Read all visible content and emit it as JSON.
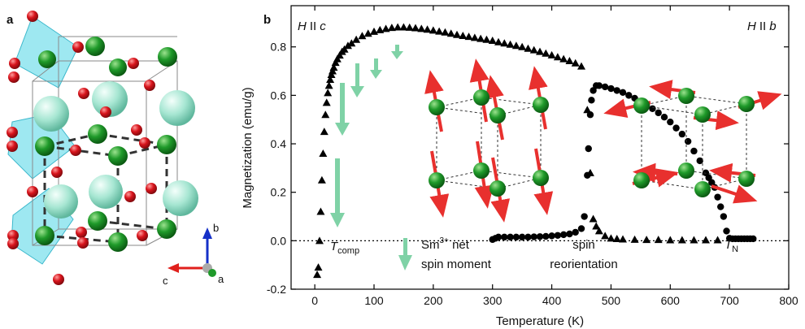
{
  "panels": {
    "a": {
      "label": "a",
      "axis_labels": {
        "b": "b",
        "c": "c",
        "a": "a"
      }
    },
    "b": {
      "label": "b"
    }
  },
  "annotations": {
    "h_c_prefix": "H",
    "h_c_parallel": "II",
    "h_c_axis": "c",
    "h_b_prefix": "H",
    "h_b_parallel": "II",
    "h_b_axis": "b",
    "t_comp_T": "T",
    "t_comp_sub": "comp",
    "sm_line1_a": "Sm",
    "sm_line1_sup": "3+",
    "sm_line1_b": " net",
    "sm_line2": "spin moment",
    "spin_reorientation_1": "spin",
    "spin_reorientation_2": "reorientation",
    "tn_T": "T",
    "tn_sub": "N"
  },
  "colors": {
    "sm_ion": "#a6e6d2",
    "fe_ion": "#1f9a2a",
    "oxygen": "#d8141c",
    "polyhedra": "#4fd6e6",
    "spin_arrow": "#e8302e",
    "sm_arrow": "#7fd2a6",
    "axis_b": "#1530c8",
    "axis_c": "#e0201c",
    "axis_a": "#1f9a2a"
  },
  "chart_data": {
    "type": "scatter",
    "xlabel": "Temperature (K)",
    "ylabel": "Magnetization (emu/g)",
    "xlim": [
      -40,
      800
    ],
    "ylim": [
      -0.2,
      0.97
    ],
    "xticks": [
      0,
      100,
      200,
      300,
      400,
      500,
      600,
      700,
      800
    ],
    "yticks": [
      -0.2,
      0.0,
      0.2,
      0.4,
      0.6,
      0.8
    ],
    "ytick_labels": [
      "-0.2",
      "0.0",
      "0.2",
      "0.4",
      "0.6",
      "0.8"
    ],
    "reference_line": {
      "y": 0.0,
      "style": "dotted"
    },
    "grid": false,
    "series": [
      {
        "marker": "triangle",
        "x": [
          4,
          6,
          8,
          10,
          12,
          14,
          16,
          18,
          20,
          22,
          24,
          26,
          28,
          30,
          32,
          35,
          38,
          42,
          46,
          50,
          56,
          62,
          70,
          80,
          90,
          100,
          110,
          120,
          130,
          140,
          150,
          160,
          170,
          180,
          190,
          200,
          210,
          220,
          230,
          240,
          250,
          260,
          270,
          280,
          290,
          300,
          310,
          320,
          330,
          340,
          350,
          360,
          370,
          380,
          390,
          400,
          410,
          420,
          430,
          440,
          450,
          460,
          465,
          470,
          475,
          480,
          490,
          500,
          510,
          520,
          540,
          560,
          580,
          600,
          620,
          640,
          660,
          680
        ],
        "y": [
          -0.14,
          -0.11,
          0.0,
          0.12,
          0.25,
          0.36,
          0.45,
          0.52,
          0.57,
          0.61,
          0.64,
          0.665,
          0.685,
          0.7,
          0.715,
          0.735,
          0.75,
          0.765,
          0.78,
          0.79,
          0.805,
          0.815,
          0.83,
          0.845,
          0.855,
          0.863,
          0.87,
          0.875,
          0.879,
          0.881,
          0.881,
          0.88,
          0.878,
          0.875,
          0.872,
          0.868,
          0.864,
          0.86,
          0.855,
          0.85,
          0.846,
          0.842,
          0.838,
          0.834,
          0.83,
          0.826,
          0.82,
          0.815,
          0.81,
          0.805,
          0.8,
          0.793,
          0.787,
          0.78,
          0.773,
          0.766,
          0.758,
          0.75,
          0.742,
          0.733,
          0.72,
          0.54,
          0.28,
          0.09,
          0.06,
          0.04,
          0.02,
          0.01,
          0.008,
          0.006,
          0.005,
          0.004,
          0.004,
          0.003,
          0.003,
          0.003,
          0.003,
          0.003
        ]
      },
      {
        "marker": "circle",
        "x": [
          300,
          305,
          310,
          320,
          330,
          340,
          350,
          360,
          370,
          380,
          390,
          400,
          410,
          420,
          430,
          440,
          450,
          455,
          460,
          462,
          465,
          467,
          470,
          475,
          480,
          490,
          500,
          510,
          520,
          530,
          540,
          550,
          560,
          570,
          580,
          590,
          600,
          610,
          620,
          630,
          640,
          650,
          660,
          665,
          670,
          675,
          680,
          685,
          690,
          695,
          700,
          705,
          710,
          715,
          720,
          725,
          730,
          735,
          740
        ],
        "y": [
          0.005,
          0.01,
          0.015,
          0.015,
          0.015,
          0.015,
          0.015,
          0.015,
          0.016,
          0.017,
          0.018,
          0.02,
          0.022,
          0.025,
          0.028,
          0.035,
          0.05,
          0.1,
          0.27,
          0.38,
          0.52,
          0.58,
          0.62,
          0.64,
          0.64,
          0.635,
          0.628,
          0.62,
          0.612,
          0.6,
          0.588,
          0.575,
          0.56,
          0.545,
          0.528,
          0.51,
          0.49,
          0.465,
          0.44,
          0.41,
          0.37,
          0.33,
          0.28,
          0.26,
          0.24,
          0.22,
          0.18,
          0.14,
          0.1,
          0.04,
          0.01,
          0.008,
          0.008,
          0.008,
          0.008,
          0.008,
          0.008,
          0.008,
          0.008
        ]
      }
    ]
  }
}
